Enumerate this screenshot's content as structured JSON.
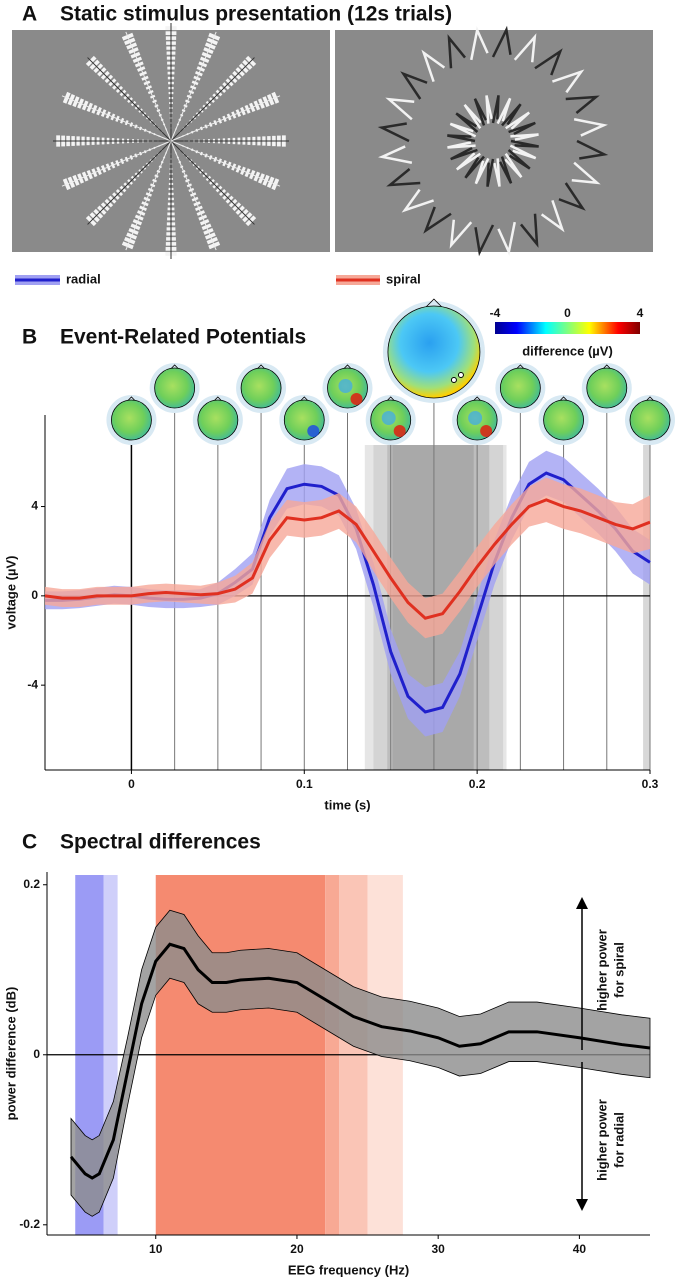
{
  "panel_a": {
    "label": "A",
    "title": "Static stimulus presentation (12s trials)"
  },
  "chart_data": [
    {
      "type": "line",
      "label": "B",
      "title": "Event-Related Potentials",
      "x_label": "time (s)",
      "y_label": "voltage (µV)",
      "xlim": [
        -0.05,
        0.3
      ],
      "ylim": [
        -7.8,
        8.1
      ],
      "xticks": [
        0,
        0.1,
        0.2,
        0.3
      ],
      "yticks": [
        -4,
        0,
        4
      ],
      "x": [
        -0.05,
        -0.04,
        -0.03,
        -0.02,
        -0.01,
        0,
        0.01,
        0.02,
        0.03,
        0.04,
        0.05,
        0.06,
        0.07,
        0.08,
        0.09,
        0.1,
        0.11,
        0.12,
        0.13,
        0.14,
        0.15,
        0.16,
        0.17,
        0.18,
        0.19,
        0.2,
        0.21,
        0.22,
        0.23,
        0.24,
        0.25,
        0.26,
        0.27,
        0.28,
        0.29,
        0.3
      ],
      "series": [
        {
          "name": "radial",
          "color": "#2020cc",
          "band_color": "#a0a0f2",
          "values": [
            -0.2,
            -0.2,
            -0.15,
            -0.05,
            0.05,
            0,
            -0.1,
            -0.15,
            -0.15,
            -0.1,
            0.1,
            0.6,
            1.2,
            3.5,
            4.8,
            5.0,
            4.9,
            4.5,
            3.0,
            0.5,
            -2.5,
            -4.5,
            -5.2,
            -5.0,
            -3.5,
            -1.0,
            1.5,
            3.5,
            5.0,
            5.5,
            5.2,
            4.5,
            3.8,
            3.0,
            2.0,
            1.5
          ],
          "error": [
            0.4,
            0.4,
            0.4,
            0.4,
            0.4,
            0.4,
            0.4,
            0.4,
            0.4,
            0.4,
            0.5,
            0.6,
            0.7,
            0.8,
            0.9,
            0.9,
            0.9,
            0.9,
            0.9,
            1.0,
            1.0,
            1.0,
            1.1,
            1.1,
            1.0,
            1.0,
            1.0,
            1.0,
            1.0,
            1.0,
            1.0,
            1.0,
            1.0,
            1.0,
            1.0,
            1.0
          ]
        },
        {
          "name": "spiral",
          "color": "#e03020",
          "band_color": "#f6a898",
          "values": [
            0,
            -0.1,
            -0.1,
            0,
            0,
            0,
            0.1,
            0.15,
            0.1,
            0.05,
            0.1,
            0.3,
            0.8,
            2.5,
            3.5,
            3.4,
            3.5,
            3.8,
            3.2,
            2.0,
            0.8,
            -0.3,
            -1.0,
            -0.8,
            0.2,
            1.3,
            2.3,
            3.2,
            4.0,
            4.3,
            4.0,
            3.8,
            3.5,
            3.2,
            3.0,
            3.3
          ],
          "error": [
            0.4,
            0.4,
            0.4,
            0.4,
            0.4,
            0.4,
            0.4,
            0.4,
            0.4,
            0.4,
            0.5,
            0.6,
            0.7,
            0.8,
            0.8,
            0.8,
            0.8,
            0.8,
            0.8,
            0.9,
            0.9,
            0.9,
            0.9,
            0.9,
            0.9,
            0.9,
            0.9,
            0.9,
            0.9,
            1.0,
            1.0,
            1.0,
            1.0,
            1.0,
            1.1,
            1.2
          ]
        }
      ],
      "shaded_intervals": [
        {
          "start": 0.135,
          "end": 0.217,
          "color": "#e6e6e6"
        },
        {
          "start": 0.14,
          "end": 0.215,
          "color": "#d4d4d4"
        },
        {
          "start": 0.148,
          "end": 0.207,
          "color": "#bdbdbd"
        },
        {
          "start": 0.151,
          "end": 0.198,
          "color": "#a9a9a9"
        },
        {
          "start": 0.296,
          "end": 0.3,
          "color": "#d8d8d8"
        }
      ],
      "topomap_times": [
        0,
        0.025,
        0.05,
        0.075,
        0.1,
        0.125,
        0.15,
        0.175,
        0.2,
        0.225,
        0.25,
        0.275,
        0.3
      ],
      "colorbar": {
        "label": "difference (µV)",
        "lim": [
          -4,
          4
        ],
        "ticks": [
          -4,
          0,
          4
        ]
      }
    },
    {
      "type": "line",
      "label": "C",
      "title": "Spectral differences",
      "x_label": "EEG frequency (Hz)",
      "y_label": "power difference (dB)",
      "xlim": [
        2.3,
        45
      ],
      "ylim": [
        -0.212,
        0.215
      ],
      "xticks": [
        10,
        20,
        30,
        40
      ],
      "yticks": [
        -0.2,
        0,
        0.2
      ],
      "x": [
        4,
        5,
        5.5,
        6,
        7,
        8,
        9,
        10,
        11,
        12,
        13,
        14,
        15,
        16,
        18,
        20,
        22,
        24,
        26,
        28,
        30,
        31.5,
        33,
        35,
        37,
        40,
        43,
        45
      ],
      "series": [
        {
          "color": "#000000",
          "band_color": "#8c8c8c",
          "values": [
            -0.12,
            -0.14,
            -0.145,
            -0.14,
            -0.1,
            -0.02,
            0.06,
            0.11,
            0.13,
            0.125,
            0.1,
            0.085,
            0.085,
            0.088,
            0.09,
            0.085,
            0.065,
            0.045,
            0.033,
            0.028,
            0.02,
            0.01,
            0.013,
            0.027,
            0.027,
            0.02,
            0.012,
            0.008
          ],
          "error": [
            0.045,
            0.045,
            0.045,
            0.045,
            0.045,
            0.04,
            0.04,
            0.04,
            0.04,
            0.04,
            0.04,
            0.035,
            0.035,
            0.035,
            0.035,
            0.035,
            0.035,
            0.035,
            0.035,
            0.035,
            0.035,
            0.035,
            0.035,
            0.035,
            0.035,
            0.035,
            0.035,
            0.035
          ]
        }
      ],
      "shaded_intervals": [
        {
          "start": 4.3,
          "end": 6.3,
          "color": "#9b9bf5"
        },
        {
          "start": 6.3,
          "end": 7.3,
          "color": "#cfcffa"
        },
        {
          "start": 10,
          "end": 22,
          "color": "#f58a70"
        },
        {
          "start": 22,
          "end": 23,
          "color": "#f8a994"
        },
        {
          "start": 23,
          "end": 25,
          "color": "#fac5b6"
        },
        {
          "start": 25,
          "end": 27.5,
          "color": "#fde1d8"
        }
      ],
      "annotations": [
        [
          "higher power",
          "for spiral"
        ],
        [
          "higher power",
          "for radial"
        ]
      ]
    }
  ]
}
